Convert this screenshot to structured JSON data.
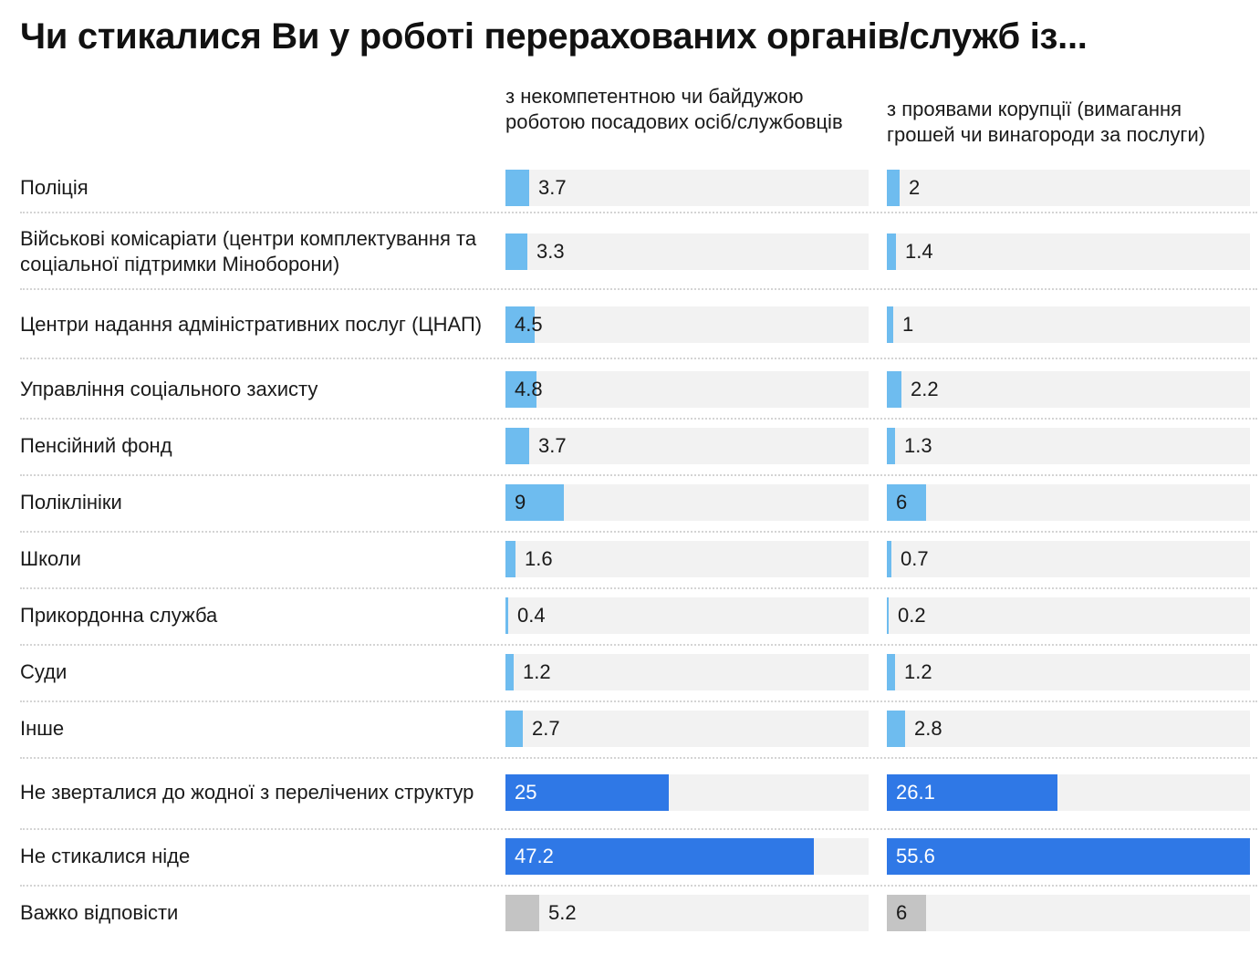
{
  "title": "Чи стикалися Ви у роботі перерахованих органів/служб із...",
  "colors": {
    "light": "#6ebcef",
    "dark": "#2f78e6",
    "gray": "#c4c4c4",
    "track": "#f2f2f2"
  },
  "chart_data": {
    "type": "bar",
    "orientation": "horizontal",
    "title": "Чи стикалися Ви у роботі перерахованих органів/служб із...",
    "xlim": [
      0,
      55.6
    ],
    "categories": [
      "Поліція",
      "Військові комісаріати (центри комплектування та соціальної підтримки Міноборони)",
      "Центри надання адміністративних послуг (ЦНАП)",
      "Управління соціального захисту",
      "Пенсійний фонд",
      "Поліклініки",
      "Школи",
      "Прикордонна служба",
      "Суди",
      "Інше",
      "Не зверталися до жодної з перелічених структур",
      "Не стикалися ніде",
      "Важко відповісти"
    ],
    "styles": [
      "light",
      "light",
      "light",
      "light",
      "light",
      "light",
      "light",
      "light",
      "light",
      "light",
      "dark",
      "dark",
      "gray"
    ],
    "series": [
      {
        "name": "з некомпетентною чи байдужою роботою посадових осіб/службовців",
        "values": [
          3.7,
          3.3,
          4.5,
          4.8,
          3.7,
          9,
          1.6,
          0.4,
          1.2,
          2.7,
          25,
          47.2,
          5.2
        ],
        "labels": [
          "3.7",
          "3.3",
          "4.5",
          "4.8",
          "3.7",
          "9",
          "1.6",
          "0.4",
          "1.2",
          "2.7",
          "25",
          "47.2",
          "5.2"
        ]
      },
      {
        "name": "з проявами корупції (вимагання грошей чи винагороди за послуги)",
        "values": [
          2,
          1.4,
          1,
          2.2,
          1.3,
          6,
          0.7,
          0.2,
          1.2,
          2.8,
          26.1,
          55.6,
          6
        ],
        "labels": [
          "2",
          "1.4",
          "1",
          "2.2",
          "1.3",
          "6",
          "0.7",
          "0.2",
          "1.2",
          "2.8",
          "26.1",
          "55.6",
          "6"
        ]
      }
    ]
  }
}
